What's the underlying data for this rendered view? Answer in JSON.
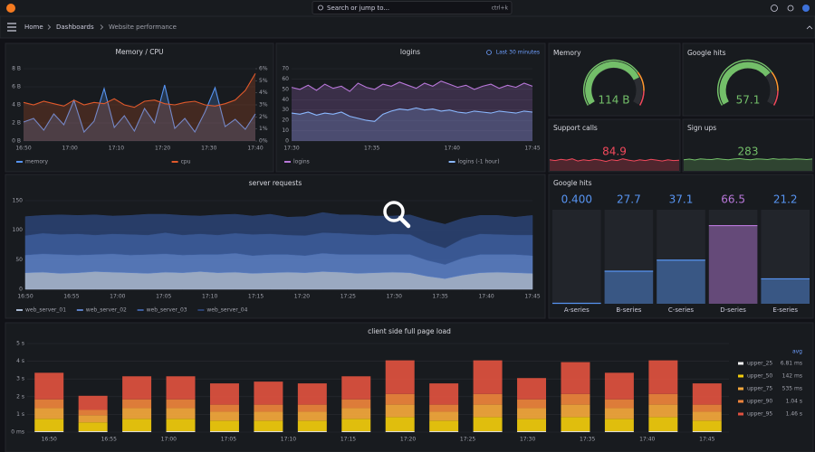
{
  "topbar": {
    "search": "Search or jump to...",
    "shortcut": "ctrl+k"
  },
  "breadcrumb": [
    "Home",
    "Dashboards",
    "Website performance"
  ],
  "memory_cpu": {
    "type": "line",
    "title": "Memory / CPU",
    "xticks": [
      "16:50",
      "17:00",
      "17:10",
      "17:20",
      "17:30",
      "17:40"
    ],
    "ylim": [
      0,
      8
    ],
    "yticks": [
      {
        "value": 0,
        "label": "0 B"
      },
      {
        "value": 2,
        "label": "2 B"
      },
      {
        "value": 4,
        "label": "4 B"
      },
      {
        "value": 6,
        "label": "6 B"
      },
      {
        "value": 8,
        "label": "8 B"
      }
    ],
    "y2lim": [
      0,
      6
    ],
    "y2ticks": [
      {
        "value": 0,
        "label": "0%"
      },
      {
        "value": 1,
        "label": "1%"
      },
      {
        "value": 2,
        "label": "2%"
      },
      {
        "value": 3,
        "label": "3%"
      },
      {
        "value": 4,
        "label": "4%"
      },
      {
        "value": 5,
        "label": "5%"
      },
      {
        "value": 6,
        "label": "6%"
      }
    ],
    "series": [
      {
        "name": "memory",
        "color": "#5794f2",
        "values": [
          2.1,
          2.5,
          1.2,
          3.0,
          1.8,
          4.5,
          1.0,
          2.2,
          5.8,
          1.5,
          2.8,
          1.1,
          3.6,
          2.0,
          6.2,
          1.4,
          2.5,
          1.0,
          3.2,
          5.9,
          1.6,
          2.4,
          1.3,
          3.0
        ]
      },
      {
        "name": "cpu",
        "color": "#e0592b",
        "axis": "y2",
        "values": [
          3.2,
          3.0,
          3.3,
          3.1,
          2.9,
          3.4,
          3.0,
          3.2,
          3.1,
          3.5,
          3.0,
          2.8,
          3.3,
          3.4,
          3.1,
          3.0,
          3.2,
          3.3,
          3.0,
          2.9,
          3.1,
          3.4,
          4.2,
          5.6
        ]
      }
    ]
  },
  "logins": {
    "type": "line",
    "title": "logins",
    "time_range": "Last 30 minutes",
    "xticks": [
      "17:30",
      "17:35",
      "17:40",
      "17:45"
    ],
    "ylim": [
      0,
      70
    ],
    "yticks": [
      0,
      10,
      20,
      30,
      40,
      50,
      60,
      70
    ],
    "series": [
      {
        "name": "logins",
        "color": "#b877d9",
        "values": [
          52,
          50,
          54,
          49,
          55,
          51,
          53,
          48,
          56,
          52,
          50,
          55,
          53,
          57,
          54,
          51,
          56,
          53,
          58,
          55,
          52,
          54,
          50,
          53,
          55,
          51,
          54,
          52,
          56,
          53
        ]
      },
      {
        "name": "logins (-1 hour)",
        "color": "#8ab8ff",
        "values": [
          27,
          26,
          28,
          25,
          27,
          26,
          28,
          24,
          22,
          20,
          19,
          26,
          29,
          31,
          30,
          32,
          30,
          31,
          29,
          30,
          28,
          27,
          29,
          28,
          27,
          29,
          28,
          27,
          29,
          28
        ]
      }
    ]
  },
  "memory_gauge": {
    "type": "gauge",
    "title": "Memory",
    "value": 114,
    "value_label": "114 B",
    "ylim": [
      0,
      150
    ],
    "color": "#73bf69"
  },
  "google_hits_gauge": {
    "type": "gauge",
    "title": "Google hits",
    "value": 57.1,
    "ylim": [
      0,
      80
    ],
    "color": "#73bf69"
  },
  "support_calls": {
    "type": "sparkline",
    "title": "Support calls",
    "value": 84.9,
    "color": "#f2495c",
    "ylim": [
      60,
      100
    ],
    "values": [
      86,
      84,
      87,
      85,
      88,
      83,
      86,
      84,
      87,
      85,
      82,
      86,
      84,
      88,
      85,
      83,
      86,
      84,
      87,
      85,
      83,
      86,
      84,
      84.9
    ]
  },
  "sign_ups": {
    "type": "sparkline",
    "title": "Sign ups",
    "value": 283,
    "color": "#73bf69",
    "ylim": [
      200,
      320
    ],
    "values": [
      278,
      282,
      276,
      284,
      280,
      279,
      285,
      281,
      277,
      283,
      286,
      280,
      278,
      284,
      282,
      279,
      285,
      281,
      283,
      280,
      284,
      282,
      279,
      283
    ]
  },
  "server_requests": {
    "type": "stacked_area",
    "title": "server requests",
    "xticks": [
      "16:50",
      "16:55",
      "17:00",
      "17:05",
      "17:10",
      "17:15",
      "17:20",
      "17:25",
      "17:30",
      "17:35",
      "17:40",
      "17:45"
    ],
    "ylim": [
      0,
      150
    ],
    "yticks": [
      0,
      50,
      100,
      150
    ],
    "series": [
      {
        "name": "web_server_01",
        "color": "#a9b9d3",
        "values": [
          28,
          29,
          27,
          28,
          30,
          29,
          28,
          27,
          29,
          28,
          30,
          28,
          29,
          27,
          28,
          29,
          28,
          30,
          29,
          27,
          28,
          29,
          28,
          22,
          18,
          24,
          28,
          29,
          28,
          27
        ]
      },
      {
        "name": "web_server_02",
        "color": "#5b7fc4",
        "values": [
          30,
          31,
          32,
          30,
          29,
          31,
          30,
          32,
          31,
          30,
          29,
          31,
          32,
          30,
          31,
          30,
          29,
          31,
          30,
          32,
          31,
          30,
          31,
          27,
          24,
          29,
          31,
          30,
          31,
          30
        ]
      },
      {
        "name": "web_server_03",
        "color": "#3d5e9e",
        "values": [
          33,
          35,
          34,
          36,
          33,
          34,
          35,
          33,
          36,
          34,
          35,
          33,
          34,
          36,
          35,
          33,
          34,
          35,
          36,
          34,
          33,
          35,
          34,
          30,
          28,
          33,
          35,
          34,
          33,
          35
        ]
      },
      {
        "name": "web_server_04",
        "color": "#2a4170",
        "values": [
          32,
          30,
          33,
          31,
          34,
          30,
          32,
          35,
          31,
          33,
          30,
          34,
          32,
          31,
          33,
          30,
          32,
          34,
          31,
          33,
          32,
          30,
          33,
          38,
          40,
          34,
          31,
          32,
          30,
          33
        ]
      }
    ]
  },
  "google_hits_bars": {
    "type": "bar_gauge",
    "title": "Google hits",
    "categories": [
      "A-series",
      "B-series",
      "C-series",
      "D-series",
      "E-series"
    ],
    "values": [
      0.4,
      27.7,
      37.1,
      66.5,
      21.2
    ],
    "value_labels": [
      "0.400",
      "27.7",
      "37.1",
      "66.5",
      "21.2"
    ],
    "colors": [
      "#5794f2",
      "#5794f2",
      "#5794f2",
      "#b877d9",
      "#5794f2"
    ],
    "ylim": [
      0,
      80
    ]
  },
  "page_load": {
    "type": "stacked_bar",
    "title": "client side full page load",
    "legend_header": "avg",
    "xticks": [
      "16:50",
      "16:55",
      "17:00",
      "17:05",
      "17:10",
      "17:15",
      "17:20",
      "17:25",
      "17:30",
      "17:35",
      "17:40",
      "17:45"
    ],
    "ylim": [
      0,
      5
    ],
    "yticks": [
      {
        "value": 0,
        "label": "0 ms"
      },
      {
        "value": 1,
        "label": "1 s"
      },
      {
        "value": 2,
        "label": "2 s"
      },
      {
        "value": 3,
        "label": "3 s"
      },
      {
        "value": 4,
        "label": "4 s"
      },
      {
        "value": 5,
        "label": "5 s"
      }
    ],
    "series": [
      {
        "name": "upper_25",
        "color": "#f2f2f2",
        "avg": "6.81 ms",
        "values": [
          0.05,
          0.05,
          0.05,
          0.05,
          0.05,
          0.05,
          0.05,
          0.05,
          0.05,
          0.05,
          0.05,
          0.05,
          0.05,
          0.05,
          0.05,
          0.05
        ]
      },
      {
        "name": "upper_50",
        "color": "#f2cc0c",
        "avg": "142 ms",
        "values": [
          0.7,
          0.5,
          0.7,
          0.7,
          0.6,
          0.6,
          0.6,
          0.7,
          0.8,
          0.6,
          0.8,
          0.7,
          0.8,
          0.7,
          0.8,
          0.6
        ]
      },
      {
        "name": "upper_75",
        "color": "#f5a83c",
        "avg": "535 ms",
        "values": [
          0.6,
          0.4,
          0.6,
          0.6,
          0.5,
          0.5,
          0.5,
          0.6,
          0.7,
          0.5,
          0.7,
          0.6,
          0.7,
          0.6,
          0.7,
          0.5
        ]
      },
      {
        "name": "upper_90",
        "color": "#ef843c",
        "avg": "1.04 s",
        "values": [
          0.5,
          0.3,
          0.5,
          0.5,
          0.4,
          0.4,
          0.4,
          0.5,
          0.6,
          0.4,
          0.6,
          0.5,
          0.6,
          0.5,
          0.6,
          0.4
        ]
      },
      {
        "name": "upper_95",
        "color": "#e0513f",
        "avg": "1.46 s",
        "values": [
          1.5,
          0.8,
          1.3,
          1.3,
          1.2,
          1.3,
          1.2,
          1.3,
          1.9,
          1.2,
          1.9,
          1.2,
          1.8,
          1.5,
          1.9,
          1.2
        ]
      }
    ]
  }
}
